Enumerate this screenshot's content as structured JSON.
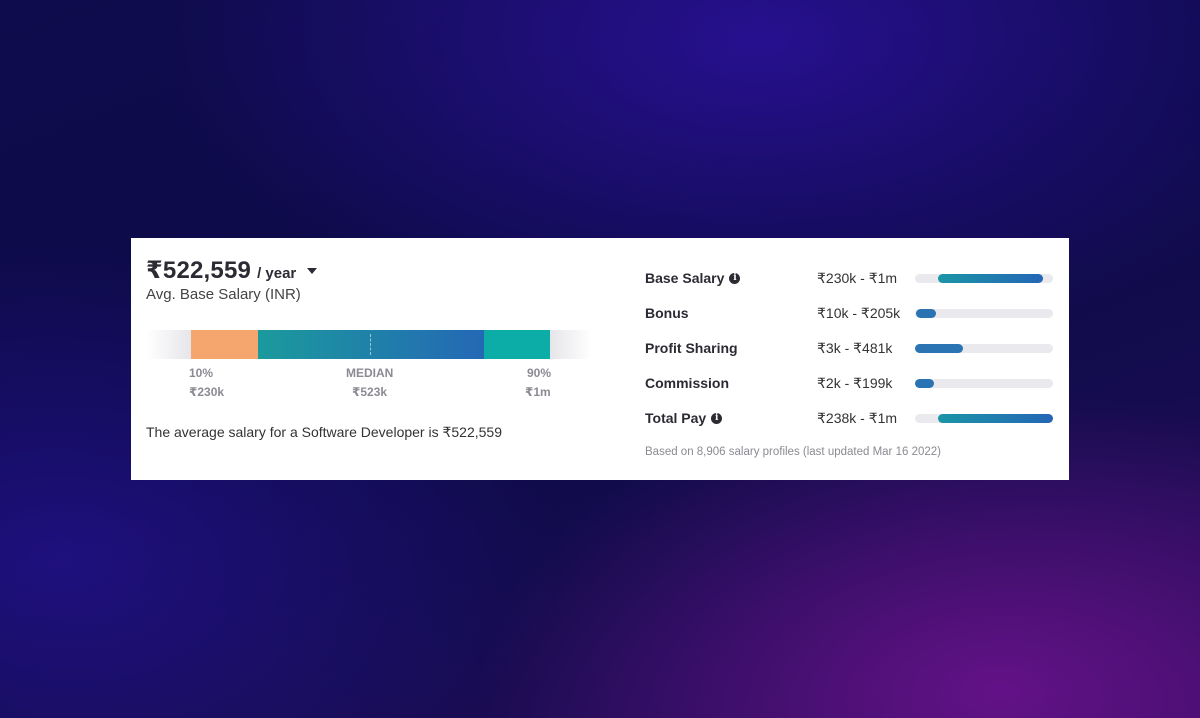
{
  "header": {
    "amount": "₹522,559",
    "period": "/ year",
    "subtitle": "Avg. Base Salary (INR)"
  },
  "distribution": {
    "low_label": "10%",
    "low_value": "₹230k",
    "median_label": "MEDIAN",
    "median_value": "₹523k",
    "high_label": "90%",
    "high_value": "₹1m",
    "colors": {
      "low": "#f5a56e",
      "mid_start": "#1b9a9d",
      "mid_end": "#2468b5",
      "high": "#0bada6"
    }
  },
  "summary": "The average salary for a Software Developer is ₹522,559",
  "breakdown": [
    {
      "label": "Base Salary",
      "info": true,
      "range": "₹230k - ₹1m",
      "range_fraction": [
        0.17,
        0.93
      ]
    },
    {
      "label": "Bonus",
      "info": false,
      "range": "₹10k - ₹205k",
      "range_fraction": [
        0.01,
        0.15
      ]
    },
    {
      "label": "Profit Sharing",
      "info": false,
      "range": "₹3k - ₹481k",
      "range_fraction": [
        0.0,
        0.35
      ]
    },
    {
      "label": "Commission",
      "info": false,
      "range": "₹2k - ₹199k",
      "range_fraction": [
        0.0,
        0.14
      ]
    },
    {
      "label": "Total Pay",
      "info": true,
      "range": "₹238k - ₹1m",
      "range_fraction": [
        0.17,
        1.0
      ]
    }
  ],
  "footnote": "Based on 8,906 salary profiles (last updated Mar 16 2022)"
}
